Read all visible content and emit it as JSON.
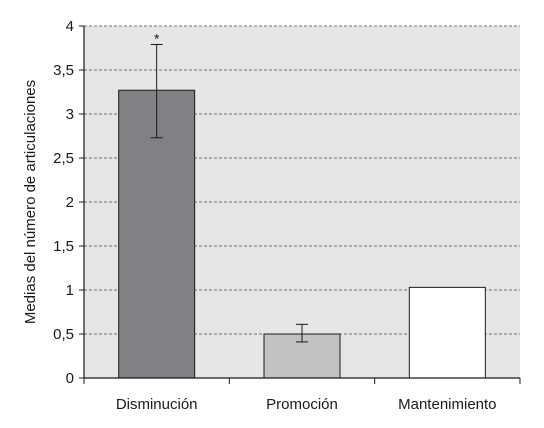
{
  "chart_data": {
    "type": "bar",
    "title": "",
    "xlabel": "",
    "ylabel": "Medias del número de articulaciones",
    "ylim": [
      0,
      4
    ],
    "yticks": [
      0,
      0.5,
      1,
      1.5,
      2,
      2.5,
      3,
      3.5,
      4
    ],
    "ytick_labels": [
      "0",
      "0,5",
      "1",
      "1,5",
      "2",
      "2,5",
      "3",
      "3,5",
      "4"
    ],
    "grid": "horizontal dashed",
    "categories": [
      "Disminución",
      "Promoción",
      "Mantenimiento"
    ],
    "values": [
      3.27,
      0.5,
      1.03
    ],
    "error_low": [
      2.73,
      0.41,
      null
    ],
    "error_high": [
      3.79,
      0.61,
      null
    ],
    "annotations": [
      "*",
      "",
      ""
    ],
    "bar_colors": [
      "#808085",
      "#c1c2c4",
      "#ffffff"
    ],
    "plot_background": "#e6e6e6",
    "gridline_color": "#4a4a4a",
    "axis_color": "#1a1a1a"
  }
}
